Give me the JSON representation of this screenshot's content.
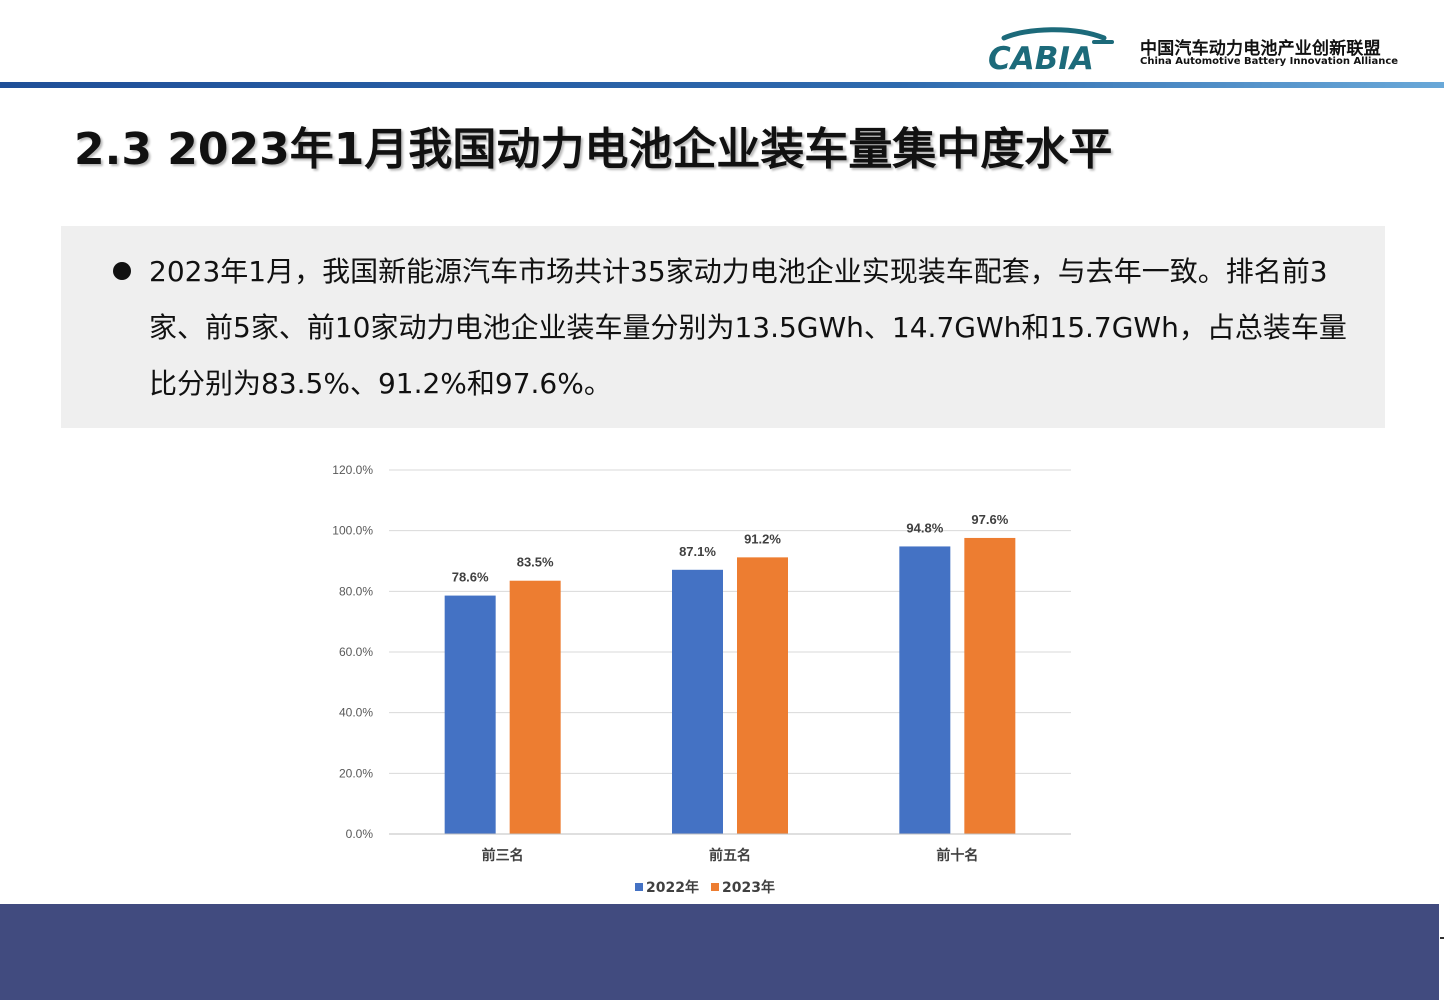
{
  "brand": {
    "logo_text": "CABIA",
    "name_cn": "中国汽车动力电池产业创新联盟",
    "name_en": "China Automotive Battery Innovation Alliance"
  },
  "page": {
    "title": "2.3 2023年1月我国动力电池企业装车量集中度水平",
    "summary": "2023年1月，我国新能源汽车市场共计35家动力电池企业实现装车配套，与去年一致。排名前3家、前5家、前10家动力电池企业装车量分别为13.5GWh、14.7GWh和15.7GWh，占总装车量比分别为83.5%、91.2%和97.6%。"
  },
  "chart_data": {
    "type": "bar",
    "categories": [
      "前三名",
      "前五名",
      "前十名"
    ],
    "series": [
      {
        "name": "2022年",
        "values": [
          78.6,
          87.1,
          94.8
        ],
        "labels": [
          "78.6%",
          "87.1%",
          "94.8%"
        ],
        "color": "#4472c4"
      },
      {
        "name": "2023年",
        "values": [
          83.5,
          91.2,
          97.6
        ],
        "labels": [
          "83.5%",
          "91.2%",
          "97.6%"
        ],
        "color": "#ed7d31"
      }
    ],
    "yticks": [
      "0.0%",
      "20.0%",
      "40.0%",
      "60.0%",
      "80.0%",
      "100.0%",
      "120.0%"
    ],
    "ylim": [
      0,
      120
    ],
    "grid": true,
    "legend_position": "bottom"
  },
  "colors": {
    "footer": "#414b7f",
    "header_line": "#2e6aae",
    "logo": "#1c6a7a"
  }
}
